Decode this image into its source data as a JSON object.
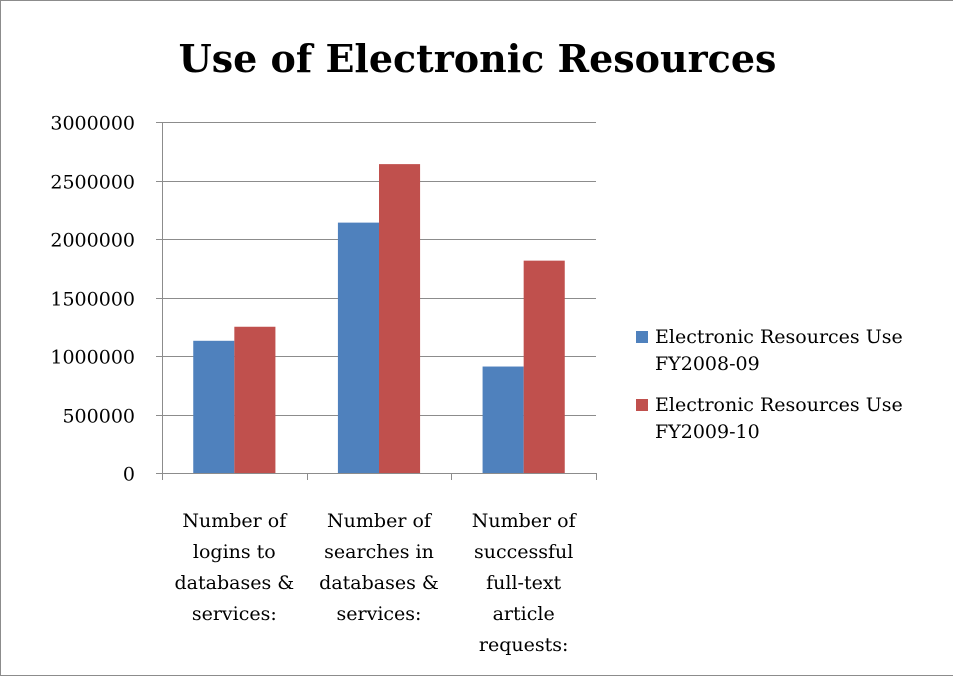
{
  "chart_data": {
    "type": "bar",
    "title": "Use of Electronic Resources",
    "categories": [
      [
        "Number of",
        "logins to",
        "databases &",
        "services:"
      ],
      [
        "Number of",
        "searches in",
        "databases &",
        "services:"
      ],
      [
        "Number of",
        "successful",
        "full-text",
        "article",
        "requests:"
      ]
    ],
    "series": [
      {
        "name": [
          "Electronic Resources Use",
          "FY2008-09"
        ],
        "color": "#4f81bd",
        "values": [
          1130000,
          2140000,
          910000
        ]
      },
      {
        "name": [
          "Electronic Resources Use",
          "FY2009-10"
        ],
        "color": "#c0504d",
        "values": [
          1250000,
          2640000,
          1815000
        ]
      }
    ],
    "ylim": [
      0,
      3000000
    ],
    "yticks": [
      0,
      500000,
      1000000,
      1500000,
      2000000,
      2500000,
      3000000
    ],
    "ytick_labels": [
      "0",
      "500000",
      "1000000",
      "1500000",
      "2000000",
      "2500000",
      "3000000"
    ],
    "grid": true,
    "legend": "right"
  }
}
